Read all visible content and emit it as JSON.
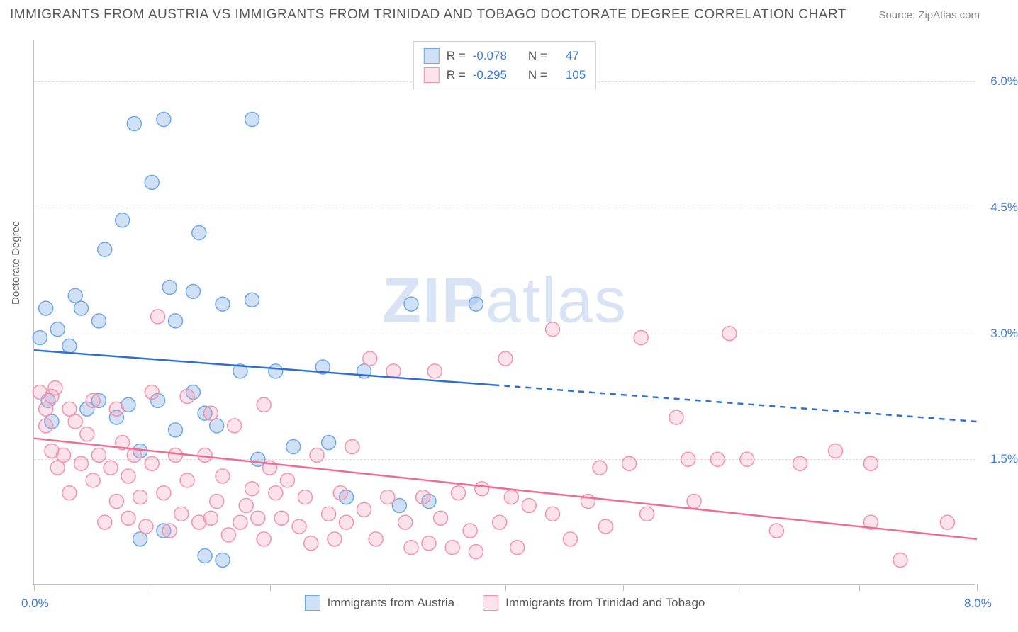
{
  "title": "IMMIGRANTS FROM AUSTRIA VS IMMIGRANTS FROM TRINIDAD AND TOBAGO DOCTORATE DEGREE CORRELATION CHART",
  "source": "Source: ZipAtlas.com",
  "watermark_a": "ZIP",
  "watermark_b": "atlas",
  "ylabel": "Doctorate Degree",
  "chart": {
    "type": "scatter",
    "xlim": [
      0,
      8
    ],
    "ylim": [
      0,
      6.5
    ],
    "x_tick_positions": [
      0,
      1,
      2,
      3,
      4,
      5,
      6,
      7,
      8
    ],
    "x_axis_labels": [
      {
        "v": 0.0,
        "t": "0.0%"
      },
      {
        "v": 8.0,
        "t": "8.0%"
      }
    ],
    "y_gridlines": [
      1.5,
      3.0,
      4.5,
      6.0
    ],
    "y_axis_labels": [
      {
        "v": 1.5,
        "t": "1.5%"
      },
      {
        "v": 3.0,
        "t": "3.0%"
      },
      {
        "v": 4.5,
        "t": "4.5%"
      },
      {
        "v": 6.0,
        "t": "6.0%"
      }
    ],
    "colors": {
      "blue_stroke": "#6fa8e8",
      "blue_fill": "rgba(120,170,230,0.35)",
      "pink_stroke": "#f193ac",
      "pink_fill": "rgba(245,160,185,0.30)",
      "blue_line": "#2f6fd0",
      "pink_line": "#ed6e91",
      "grid": "#dcdcdc",
      "axis": "#bdbdbd",
      "tick_text": "#3b7dd8"
    },
    "marker_radius": 10,
    "line_width": 2.5,
    "series": [
      {
        "name": "Immigrants from Austria",
        "color_key": "blue",
        "R": "-0.078",
        "N": "47",
        "regression": {
          "x1": 0.0,
          "y1": 2.8,
          "x2": 8.0,
          "y2": 1.95,
          "solid_until_x": 3.9
        },
        "points": [
          [
            0.05,
            2.95
          ],
          [
            0.1,
            3.3
          ],
          [
            0.12,
            2.2
          ],
          [
            0.15,
            1.95
          ],
          [
            0.2,
            3.05
          ],
          [
            0.3,
            2.85
          ],
          [
            0.35,
            3.45
          ],
          [
            0.4,
            3.3
          ],
          [
            0.45,
            2.1
          ],
          [
            0.55,
            2.2
          ],
          [
            0.55,
            3.15
          ],
          [
            0.6,
            4.0
          ],
          [
            0.7,
            2.0
          ],
          [
            0.75,
            4.35
          ],
          [
            0.8,
            2.15
          ],
          [
            0.85,
            5.5
          ],
          [
            0.9,
            1.6
          ],
          [
            0.9,
            0.55
          ],
          [
            1.0,
            4.8
          ],
          [
            1.05,
            2.2
          ],
          [
            1.1,
            5.55
          ],
          [
            1.1,
            0.65
          ],
          [
            1.15,
            3.55
          ],
          [
            1.2,
            3.15
          ],
          [
            1.2,
            1.85
          ],
          [
            1.35,
            3.5
          ],
          [
            1.35,
            2.3
          ],
          [
            1.4,
            4.2
          ],
          [
            1.45,
            0.35
          ],
          [
            1.45,
            2.05
          ],
          [
            1.55,
            1.9
          ],
          [
            1.6,
            0.3
          ],
          [
            1.6,
            3.35
          ],
          [
            1.75,
            2.55
          ],
          [
            1.85,
            5.55
          ],
          [
            1.85,
            3.4
          ],
          [
            1.9,
            1.5
          ],
          [
            2.05,
            2.55
          ],
          [
            2.2,
            1.65
          ],
          [
            2.45,
            2.6
          ],
          [
            2.5,
            1.7
          ],
          [
            2.65,
            1.05
          ],
          [
            2.8,
            2.55
          ],
          [
            3.1,
            0.95
          ],
          [
            3.2,
            3.35
          ],
          [
            3.35,
            1.0
          ],
          [
            3.75,
            3.35
          ]
        ]
      },
      {
        "name": "Immigrants from Trinidad and Tobago",
        "color_key": "pink",
        "R": "-0.295",
        "N": "105",
        "regression": {
          "x1": 0.0,
          "y1": 1.75,
          "x2": 8.0,
          "y2": 0.55,
          "solid_until_x": 8.0
        },
        "points": [
          [
            0.05,
            2.3
          ],
          [
            0.1,
            2.1
          ],
          [
            0.1,
            1.9
          ],
          [
            0.15,
            2.25
          ],
          [
            0.15,
            1.6
          ],
          [
            0.18,
            2.35
          ],
          [
            0.2,
            1.4
          ],
          [
            0.25,
            1.55
          ],
          [
            0.3,
            2.1
          ],
          [
            0.3,
            1.1
          ],
          [
            0.35,
            1.95
          ],
          [
            0.4,
            1.45
          ],
          [
            0.45,
            1.8
          ],
          [
            0.5,
            2.2
          ],
          [
            0.5,
            1.25
          ],
          [
            0.55,
            1.55
          ],
          [
            0.6,
            0.75
          ],
          [
            0.65,
            1.4
          ],
          [
            0.7,
            2.1
          ],
          [
            0.7,
            1.0
          ],
          [
            0.75,
            1.7
          ],
          [
            0.8,
            1.3
          ],
          [
            0.8,
            0.8
          ],
          [
            0.85,
            1.55
          ],
          [
            0.9,
            1.05
          ],
          [
            0.95,
            0.7
          ],
          [
            1.0,
            1.45
          ],
          [
            1.0,
            2.3
          ],
          [
            1.05,
            3.2
          ],
          [
            1.1,
            1.1
          ],
          [
            1.15,
            0.65
          ],
          [
            1.2,
            1.55
          ],
          [
            1.25,
            0.85
          ],
          [
            1.3,
            1.25
          ],
          [
            1.3,
            2.25
          ],
          [
            1.4,
            0.75
          ],
          [
            1.45,
            1.55
          ],
          [
            1.5,
            2.05
          ],
          [
            1.5,
            0.8
          ],
          [
            1.55,
            1.0
          ],
          [
            1.6,
            1.3
          ],
          [
            1.65,
            0.6
          ],
          [
            1.7,
            1.9
          ],
          [
            1.75,
            0.75
          ],
          [
            1.8,
            0.95
          ],
          [
            1.85,
            1.15
          ],
          [
            1.9,
            0.8
          ],
          [
            1.95,
            2.15
          ],
          [
            1.95,
            0.55
          ],
          [
            2.0,
            1.4
          ],
          [
            2.05,
            1.1
          ],
          [
            2.1,
            0.8
          ],
          [
            2.15,
            1.25
          ],
          [
            2.25,
            0.7
          ],
          [
            2.3,
            1.05
          ],
          [
            2.35,
            0.5
          ],
          [
            2.4,
            1.55
          ],
          [
            2.5,
            0.85
          ],
          [
            2.55,
            0.55
          ],
          [
            2.6,
            1.1
          ],
          [
            2.65,
            0.75
          ],
          [
            2.7,
            1.65
          ],
          [
            2.8,
            0.9
          ],
          [
            2.85,
            2.7
          ],
          [
            2.9,
            0.55
          ],
          [
            3.0,
            1.05
          ],
          [
            3.05,
            2.55
          ],
          [
            3.15,
            0.75
          ],
          [
            3.2,
            0.45
          ],
          [
            3.3,
            1.05
          ],
          [
            3.35,
            0.5
          ],
          [
            3.4,
            2.55
          ],
          [
            3.45,
            0.8
          ],
          [
            3.55,
            0.45
          ],
          [
            3.6,
            1.1
          ],
          [
            3.7,
            0.65
          ],
          [
            3.75,
            0.4
          ],
          [
            3.8,
            1.15
          ],
          [
            3.95,
            0.75
          ],
          [
            4.0,
            2.7
          ],
          [
            4.05,
            1.05
          ],
          [
            4.1,
            0.45
          ],
          [
            4.2,
            0.95
          ],
          [
            4.4,
            3.05
          ],
          [
            4.4,
            0.85
          ],
          [
            4.55,
            0.55
          ],
          [
            4.7,
            1.0
          ],
          [
            4.8,
            1.4
          ],
          [
            4.85,
            0.7
          ],
          [
            5.05,
            1.45
          ],
          [
            5.15,
            2.95
          ],
          [
            5.2,
            0.85
          ],
          [
            5.45,
            2.0
          ],
          [
            5.55,
            1.5
          ],
          [
            5.6,
            1.0
          ],
          [
            5.8,
            1.5
          ],
          [
            5.9,
            3.0
          ],
          [
            6.05,
            1.5
          ],
          [
            6.3,
            0.65
          ],
          [
            6.5,
            1.45
          ],
          [
            6.8,
            1.6
          ],
          [
            7.1,
            0.75
          ],
          [
            7.1,
            1.45
          ],
          [
            7.35,
            0.3
          ],
          [
            7.75,
            0.75
          ]
        ]
      }
    ]
  },
  "legend_top_labels": {
    "R": "R =",
    "N": "N ="
  },
  "legend_bottom": [
    {
      "label": "Immigrants from Austria",
      "color_key": "blue"
    },
    {
      "label": "Immigrants from Trinidad and Tobago",
      "color_key": "pink"
    }
  ]
}
